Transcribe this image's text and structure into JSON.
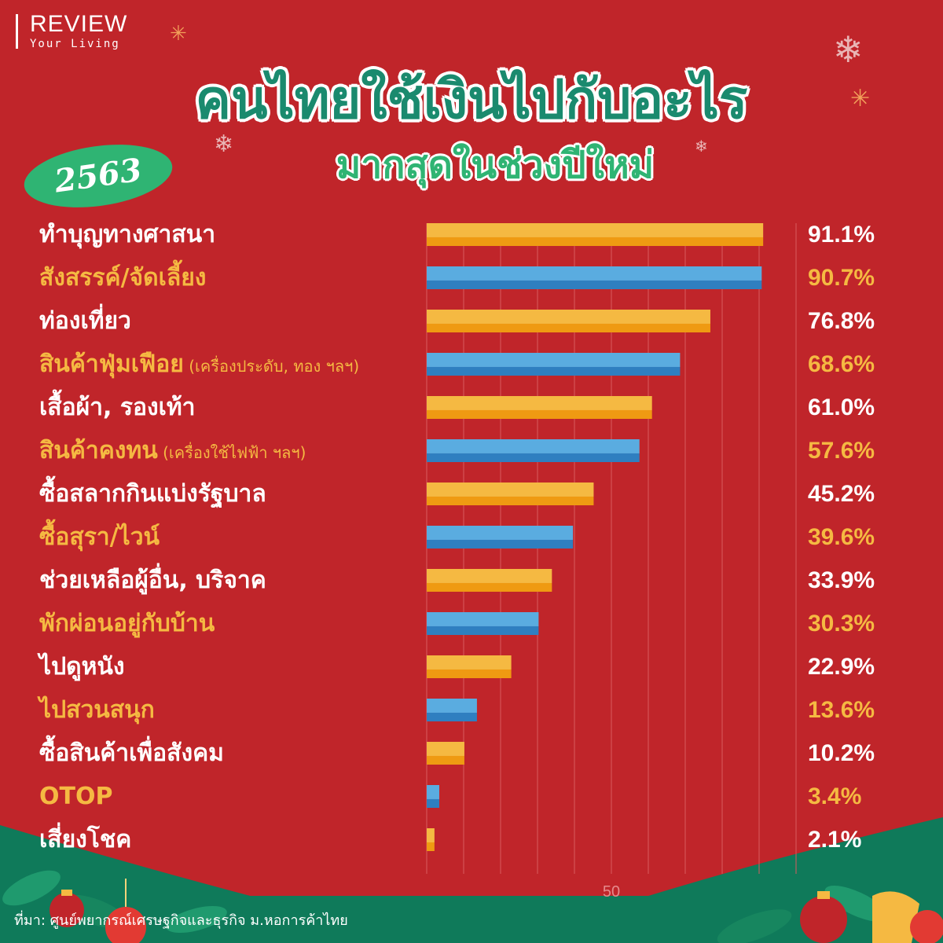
{
  "brand": {
    "name": "REVIEW",
    "tagline": "Your Living"
  },
  "header": {
    "title": "คนไทยใช้เงินไปกับอะไร",
    "subtitle": "มากสุดในช่วงปีใหม่",
    "year_badge": "2563"
  },
  "colors": {
    "background": "#c0252a",
    "bar_orange": "#f5b942",
    "bar_orange_dark": "#ef9a12",
    "bar_blue": "#5aace0",
    "bar_blue_dark": "#2f7fc0",
    "title_green": "#1a8a6e",
    "accent_green": "#2fb473",
    "label_gold": "#f5b942"
  },
  "chart_data": {
    "type": "bar",
    "orientation": "horizontal",
    "title": "คนไทยใช้เงินไปกับอะไร มากสุดในช่วงปีใหม่",
    "xlim": [
      0,
      100
    ],
    "x_tick_labels": [
      "50"
    ],
    "grid": true,
    "categories": [
      "ทำบุญทางศาสนา",
      "สังสรรค์/จัดเลี้ยง",
      "ท่องเที่ยว",
      "สินค้าฟุ่มเฟือย",
      "เสื้อผ้า, รองเท้า",
      "สินค้าคงทน",
      "ซื้อสลากกินแบ่งรัฐบาล",
      "ซื้อสุรา/ไวน์",
      "ช่วยเหลือผู้อื่น, บริจาค",
      "พักผ่อนอยู่กับบ้าน",
      "ไปดูหนัง",
      "ไปสวนสนุก",
      "ซื้อสินค้าเพื่อสังคม",
      "OTOP",
      "เสี่ยงโชค"
    ],
    "notes": [
      "",
      "",
      "",
      "(เครื่องประดับ, ทอง ฯลฯ)",
      "",
      "(เครื่องใช้ไฟฟ้า ฯลฯ)",
      "",
      "",
      "",
      "",
      "",
      "",
      "",
      "",
      ""
    ],
    "values": [
      91.1,
      90.7,
      76.8,
      68.6,
      61.0,
      57.6,
      45.2,
      39.6,
      33.9,
      30.3,
      22.9,
      13.6,
      10.2,
      3.4,
      2.1
    ],
    "value_labels": [
      "91.1%",
      "90.7%",
      "76.8%",
      "68.6%",
      "61.0%",
      "57.6%",
      "45.2%",
      "39.6%",
      "33.9%",
      "30.3%",
      "22.9%",
      "13.6%",
      "10.2%",
      "3.4%",
      "2.1%"
    ]
  },
  "footer": {
    "source": "ที่มา: ศูนย์พยากรณ์เศรษฐกิจและธุรกิจ ม.หอการค้าไทย"
  }
}
